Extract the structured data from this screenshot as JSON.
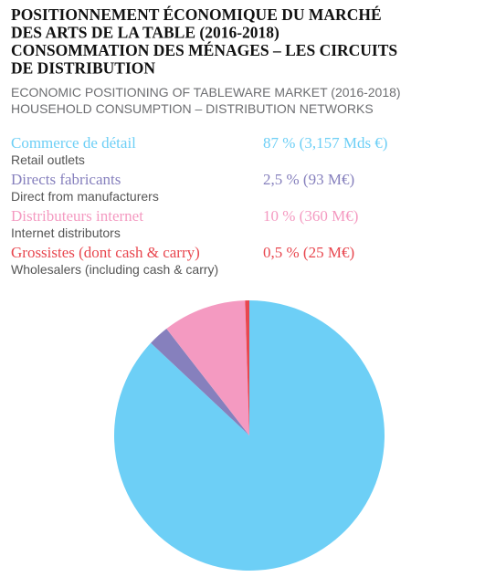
{
  "chart_data": {
    "type": "pie",
    "title": [
      "POSITIONNEMENT ÉCONOMIQUE DU MARCHÉ",
      "DES ARTS DE LA TABLE (2016-2018)",
      "CONSOMMATION DES MÉNAGES – LES CIRCUITS",
      "DE DISTRIBUTION"
    ],
    "subtitle": [
      "ECONOMIC POSITIONING OF TABLEWARE MARKET (2016-2018)",
      "HOUSEHOLD CONSUMPTION – DISTRIBUTION NETWORKS"
    ],
    "categories": [
      "Commerce de détail",
      "Directs fabricants",
      "Distributeurs internet",
      "Grossistes (dont cash & carry)"
    ],
    "categories_en": [
      "Retail outlets",
      "Direct from manufacturers",
      "Internet distributors",
      "Wholesalers (including cash & carry)"
    ],
    "values": [
      87,
      2.5,
      10,
      0.5
    ],
    "value_labels": [
      "87 % (3,157 Mds €)",
      "2,5 % (93 M€)",
      "10 % (360 M€)",
      "0,5 % (25 M€)"
    ],
    "colors": [
      "#6dcff6",
      "#8680bd",
      "#f49ac1",
      "#e8474f"
    ]
  }
}
